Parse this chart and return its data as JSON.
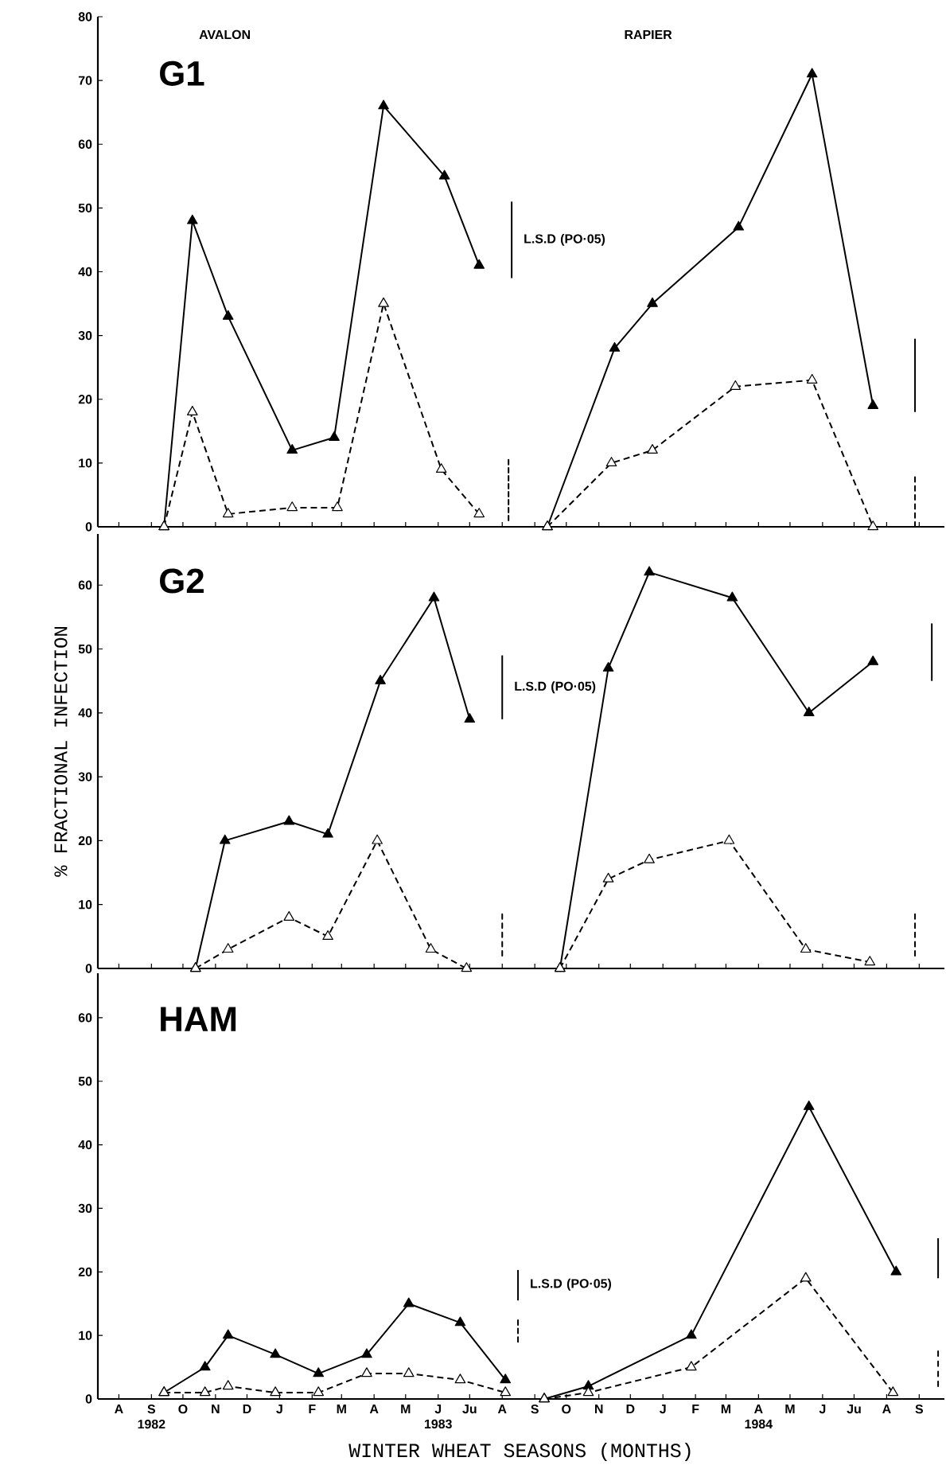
{
  "chart_data": [
    {
      "type": "line",
      "title": "G1",
      "annotations": [
        "AVALON",
        "RAPIER",
        {
          "text": "L.S.D (PO·05)",
          "x": "1983-08-10",
          "y": 45
        }
      ],
      "xlim": [
        "1982-07-12",
        "1984-09-25"
      ],
      "ylim": [
        0,
        80
      ],
      "yticks": [
        0,
        10,
        20,
        30,
        40,
        50,
        60,
        70,
        80
      ],
      "tick_labels": "y",
      "marker": "triangle",
      "xticks": [
        {
          "value": "1982-08",
          "label": null
        },
        {
          "value": "1982-09",
          "label": null
        },
        {
          "value": "1982-10",
          "label": null
        },
        {
          "value": "1982-11",
          "label": null
        },
        {
          "value": "1982-12",
          "label": null
        },
        {
          "value": "1983-01",
          "label": null
        },
        {
          "value": "1983-02",
          "label": null
        },
        {
          "value": "1983-03",
          "label": null
        },
        {
          "value": "1983-04",
          "label": null
        },
        {
          "value": "1983-05",
          "label": null
        },
        {
          "value": "1983-06",
          "label": null
        },
        {
          "value": "1983-07",
          "label": null
        },
        {
          "value": "1983-08",
          "label": null
        },
        {
          "value": "1983-09",
          "label": null
        },
        {
          "value": "1983-10",
          "label": null
        },
        {
          "value": "1983-11",
          "label": null
        },
        {
          "value": "1983-12",
          "label": null
        },
        {
          "value": "1984-01",
          "label": null
        },
        {
          "value": "1984-02",
          "label": null
        },
        {
          "value": "1984-03",
          "label": null
        },
        {
          "value": "1984-04",
          "label": null
        },
        {
          "value": "1984-05",
          "label": null
        },
        {
          "value": "1984-06",
          "label": null
        },
        {
          "value": "1984-07",
          "label": null
        },
        {
          "value": "1984-08",
          "label": null
        },
        {
          "value": "1984-09",
          "label": null
        }
      ],
      "series": [
        {
          "color": "#000000",
          "line_style": "solid",
          "x": [
            "1982-09-13",
            "1982-10-10",
            "1982-11-13",
            "1983-01-13",
            "1983-02-22",
            "1983-04-10",
            "1983-06-07",
            "1983-07-10"
          ],
          "values": [
            0,
            48,
            33,
            12,
            14,
            66,
            55,
            41
          ]
        },
        {
          "color": "#000000",
          "line_style": "dashed",
          "x": [
            "1982-09-13",
            "1982-10-10",
            "1982-11-13",
            "1983-01-13",
            "1983-02-25",
            "1983-04-10",
            "1983-06-04",
            "1983-07-10"
          ],
          "values": [
            0,
            18,
            2,
            3,
            3,
            35,
            9,
            2
          ]
        },
        {
          "color": "#000000",
          "line_style": "solid",
          "x": [
            "1983-09-13",
            "1983-11-16",
            "1983-12-22",
            "1984-03-13",
            "1984-05-22",
            "1984-07-19"
          ],
          "values": [
            0,
            28,
            35,
            47,
            71,
            19
          ]
        },
        {
          "color": "#000000",
          "line_style": "dashed",
          "x": [
            "1983-09-13",
            "1983-11-13",
            "1983-12-22",
            "1984-03-10",
            "1984-05-22",
            "1984-07-19"
          ],
          "values": [
            0,
            10,
            12,
            22,
            23,
            0
          ]
        },
        {
          "marker": "none",
          "color": "#000000",
          "line_style": "solid",
          "x": [
            "1983-08-10",
            "1983-08-10"
          ],
          "values": [
            39,
            51
          ]
        },
        {
          "marker": "none",
          "color": "#000000",
          "line_style": "dashed",
          "x": [
            "1983-08-07",
            "1983-08-07"
          ],
          "values": [
            1,
            10.5
          ]
        },
        {
          "marker": "none",
          "color": "#000000",
          "line_style": "solid",
          "x": [
            "1984-08-28",
            "1984-08-28"
          ],
          "values": [
            18,
            29.5
          ]
        },
        {
          "marker": "none",
          "color": "#000000",
          "line_style": "dashed",
          "x": [
            "1984-08-28",
            "1984-08-28"
          ],
          "values": [
            0,
            7.8
          ]
        }
      ]
    },
    {
      "type": "line",
      "title": "G2",
      "ylabel": "% FRACTIONAL INFECTION",
      "annotations": [
        {
          "text": "L.S.D (PO·05)",
          "x": "1983-08-01",
          "y": 44
        }
      ],
      "xlim": [
        "1982-07-12",
        "1984-09-25"
      ],
      "ylim": [
        0,
        68
      ],
      "yticks": [
        0,
        10,
        20,
        30,
        40,
        50,
        60
      ],
      "tick_labels": "y",
      "marker": "triangle",
      "xticks": [
        {
          "value": "1982-08",
          "label": null
        },
        {
          "value": "1982-09",
          "label": null
        },
        {
          "value": "1982-10",
          "label": null
        },
        {
          "value": "1982-11",
          "label": null
        },
        {
          "value": "1982-12",
          "label": null
        },
        {
          "value": "1983-01",
          "label": null
        },
        {
          "value": "1983-02",
          "label": null
        },
        {
          "value": "1983-03",
          "label": null
        },
        {
          "value": "1983-04",
          "label": null
        },
        {
          "value": "1983-05",
          "label": null
        },
        {
          "value": "1983-06",
          "label": null
        },
        {
          "value": "1983-07",
          "label": null
        },
        {
          "value": "1983-08",
          "label": null
        },
        {
          "value": "1983-09",
          "label": null
        },
        {
          "value": "1983-10",
          "label": null
        },
        {
          "value": "1983-11",
          "label": null
        },
        {
          "value": "1983-12",
          "label": null
        },
        {
          "value": "1984-01",
          "label": null
        },
        {
          "value": "1984-02",
          "label": null
        },
        {
          "value": "1984-03",
          "label": null
        },
        {
          "value": "1984-04",
          "label": null
        },
        {
          "value": "1984-05",
          "label": null
        },
        {
          "value": "1984-06",
          "label": null
        },
        {
          "value": "1984-07",
          "label": null
        },
        {
          "value": "1984-08",
          "label": null
        },
        {
          "value": "1984-09",
          "label": null
        }
      ],
      "series": [
        {
          "color": "#000000",
          "line_style": "solid",
          "x": [
            "1982-10-13",
            "1982-11-10",
            "1983-01-10",
            "1983-02-16",
            "1983-04-07",
            "1983-05-28",
            "1983-07-01"
          ],
          "values": [
            0,
            20,
            23,
            21,
            45,
            58,
            39
          ]
        },
        {
          "color": "#000000",
          "line_style": "dashed",
          "x": [
            "1982-10-13",
            "1982-11-13",
            "1983-01-10",
            "1983-02-16",
            "1983-04-04",
            "1983-05-25",
            "1983-06-28"
          ],
          "values": [
            0,
            3,
            8,
            5,
            20,
            3,
            0
          ]
        },
        {
          "color": "#000000",
          "line_style": "solid",
          "x": [
            "1983-09-25",
            "1983-11-10",
            "1983-12-19",
            "1984-03-07",
            "1984-05-19",
            "1984-07-19"
          ],
          "values": [
            0,
            47,
            62,
            58,
            40,
            48
          ]
        },
        {
          "color": "#000000",
          "line_style": "dashed",
          "x": [
            "1983-09-25",
            "1983-11-10",
            "1983-12-19",
            "1984-03-04",
            "1984-05-16",
            "1984-07-16"
          ],
          "values": [
            0,
            14,
            17,
            20,
            3,
            1
          ]
        },
        {
          "marker": "none",
          "color": "#000000",
          "line_style": "solid",
          "x": [
            "1983-08-01",
            "1983-08-01"
          ],
          "values": [
            39,
            49
          ]
        },
        {
          "marker": "none",
          "color": "#000000",
          "line_style": "dashed",
          "x": [
            "1983-08-01",
            "1983-08-01"
          ],
          "values": [
            2,
            8.5
          ]
        },
        {
          "marker": "none",
          "color": "#000000",
          "line_style": "solid",
          "x": [
            "1984-09-13",
            "1984-09-13"
          ],
          "values": [
            45,
            54
          ]
        },
        {
          "marker": "none",
          "color": "#000000",
          "line_style": "dashed",
          "x": [
            "1984-08-28",
            "1984-08-28"
          ],
          "values": [
            2,
            8.5
          ]
        }
      ]
    },
    {
      "type": "line",
      "title": "HAM",
      "xlabel": "WINTER WHEAT SEASONS (MONTHS)",
      "annotations": [
        {
          "text": "L.S.D (PO·05)",
          "x": "1983-08-16",
          "y": 18
        }
      ],
      "xlim": [
        "1982-07-12",
        "1984-09-25"
      ],
      "ylim": [
        0,
        67
      ],
      "yticks": [
        0,
        10,
        20,
        30,
        40,
        50,
        60
      ],
      "marker": "triangle",
      "xticks": [
        {
          "value": "1982-08",
          "label": "A"
        },
        {
          "value": "1982-09",
          "label": "S 1982"
        },
        {
          "value": "1982-10",
          "label": "O"
        },
        {
          "value": "1982-11",
          "label": "N"
        },
        {
          "value": "1982-12",
          "label": "D"
        },
        {
          "value": "1983-01",
          "label": "J"
        },
        {
          "value": "1983-02",
          "label": "F"
        },
        {
          "value": "1983-03",
          "label": "M"
        },
        {
          "value": "1983-04",
          "label": "A"
        },
        {
          "value": "1983-05",
          "label": "M"
        },
        {
          "value": "1983-06",
          "label": "J 1983"
        },
        {
          "value": "1983-07",
          "label": "Ju"
        },
        {
          "value": "1983-08",
          "label": "A"
        },
        {
          "value": "1983-09",
          "label": "S"
        },
        {
          "value": "1983-10",
          "label": "O"
        },
        {
          "value": "1983-11",
          "label": "N"
        },
        {
          "value": "1983-12",
          "label": "D"
        },
        {
          "value": "1984-01",
          "label": "J"
        },
        {
          "value": "1984-02",
          "label": "F"
        },
        {
          "value": "1984-03",
          "label": "M"
        },
        {
          "value": "1984-04",
          "label": "A 1984"
        },
        {
          "value": "1984-05",
          "label": "M"
        },
        {
          "value": "1984-06",
          "label": "J"
        },
        {
          "value": "1984-07",
          "label": "Ju"
        },
        {
          "value": "1984-08",
          "label": "A"
        },
        {
          "value": "1984-09",
          "label": "S"
        }
      ],
      "series": [
        {
          "color": "#000000",
          "line_style": "solid",
          "x": [
            "1982-09-13",
            "1982-10-22",
            "1982-11-13",
            "1982-12-28",
            "1983-02-07",
            "1983-03-25",
            "1983-05-04",
            "1983-06-22",
            "1983-08-04"
          ],
          "values": [
            1,
            5,
            10,
            7,
            4,
            7,
            15,
            12,
            3
          ]
        },
        {
          "color": "#000000",
          "line_style": "dashed",
          "x": [
            "1982-09-13",
            "1982-10-22",
            "1982-11-13",
            "1982-12-28",
            "1983-02-07",
            "1983-03-25",
            "1983-05-04",
            "1983-06-22",
            "1983-08-04"
          ],
          "values": [
            1,
            1,
            2,
            1,
            1,
            4,
            4,
            3,
            1
          ]
        },
        {
          "color": "#000000",
          "line_style": "solid",
          "x": [
            "1983-09-10",
            "1983-10-22",
            "1984-01-28",
            "1984-05-19",
            "1984-08-10"
          ],
          "values": [
            0,
            2,
            10,
            46,
            20
          ]
        },
        {
          "color": "#000000",
          "line_style": "dashed",
          "x": [
            "1983-09-10",
            "1983-10-22",
            "1984-01-28",
            "1984-05-16",
            "1984-08-07"
          ],
          "values": [
            0,
            1,
            5,
            19,
            1
          ]
        },
        {
          "marker": "none",
          "color": "#000000",
          "line_style": "solid",
          "x": [
            "1983-08-16",
            "1983-08-16"
          ],
          "values": [
            15.5,
            20.3
          ]
        },
        {
          "marker": "none",
          "color": "#000000",
          "line_style": "dashed",
          "x": [
            "1983-08-16",
            "1983-08-16"
          ],
          "values": [
            9,
            12.4
          ]
        },
        {
          "marker": "none",
          "color": "#000000",
          "line_style": "solid",
          "x": [
            "1984-09-19",
            "1984-09-19"
          ],
          "values": [
            19,
            25.3
          ]
        },
        {
          "marker": "none",
          "color": "#000000",
          "line_style": "dashed",
          "x": [
            "1984-09-19",
            "1984-09-19"
          ],
          "values": [
            2,
            7.5
          ]
        }
      ]
    }
  ]
}
